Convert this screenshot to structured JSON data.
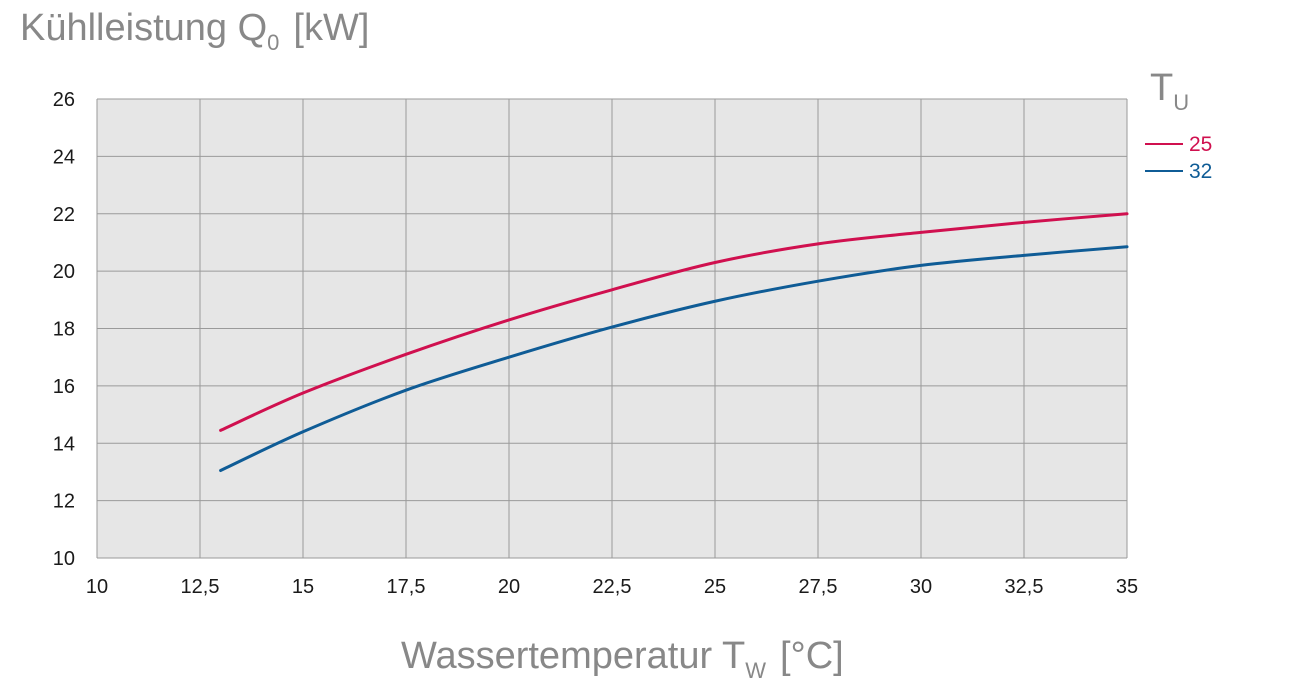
{
  "chart_data": {
    "type": "line",
    "ylabel": {
      "main": "Kühlleistung Q",
      "sub": "0",
      "unit": "[kW]"
    },
    "xlabel": {
      "main": "Wassertemperatur T",
      "sub": "W",
      "unit": "[°C]"
    },
    "legend": {
      "title_main": "T",
      "title_sub": "U",
      "placement": "right"
    },
    "xlim": [
      10,
      35
    ],
    "ylim": [
      10,
      26
    ],
    "x_ticks": [
      10,
      12.5,
      15,
      17.5,
      20,
      22.5,
      25,
      27.5,
      30,
      32.5,
      35
    ],
    "x_tick_labels": [
      "10",
      "12,5",
      "15",
      "17,5",
      "20",
      "22,5",
      "25",
      "27,5",
      "30",
      "32,5",
      "35"
    ],
    "y_ticks": [
      10,
      12,
      14,
      16,
      18,
      20,
      22,
      24,
      26
    ],
    "y_tick_labels": [
      "10",
      "12",
      "14",
      "16",
      "18",
      "20",
      "22",
      "24",
      "26"
    ],
    "grid": true,
    "colors": {
      "plot_bg": "#e6e6e6",
      "grid": "#9a9a9a",
      "axis_text": "#888888",
      "tick_text": "#1a1a1a"
    },
    "series": [
      {
        "name": "25",
        "color": "#d0104f",
        "x": [
          13,
          15,
          17.5,
          20,
          22.5,
          25,
          27.5,
          30,
          32.5,
          35
        ],
        "y": [
          14.45,
          15.75,
          17.1,
          18.3,
          19.35,
          20.3,
          20.95,
          21.35,
          21.7,
          22.0
        ]
      },
      {
        "name": "32",
        "color": "#0f5c96",
        "x": [
          13,
          15,
          17.5,
          20,
          22.5,
          25,
          27.5,
          30,
          32.5,
          35
        ],
        "y": [
          13.05,
          14.4,
          15.85,
          17.0,
          18.05,
          18.95,
          19.65,
          20.2,
          20.55,
          20.85
        ]
      }
    ]
  }
}
